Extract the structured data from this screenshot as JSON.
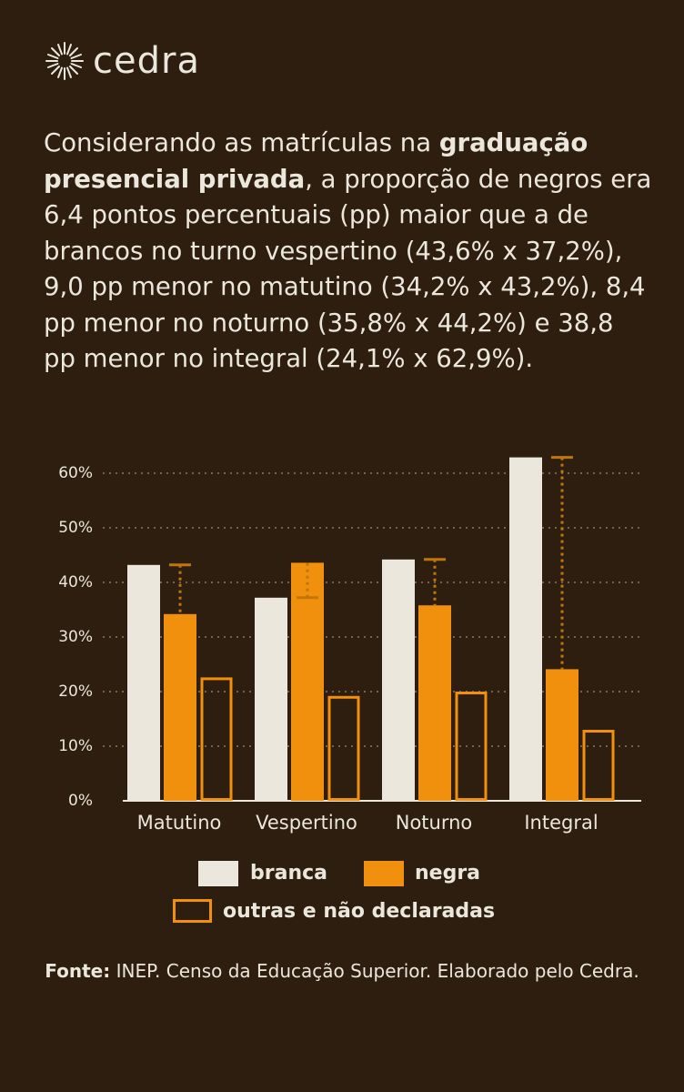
{
  "logo": "cedra",
  "intro": [
    "Considerando as matrículas na ",
    "graduação presencial privada",
    ", a proporção de negros era 6,4 pontos percentuais (pp) maior que a de brancos no turno vespertino (43,6% x 37,2%), 9,0 pp menor no matutino (34,2% x 43,2%), 8,4 pp menor no noturno (35,8% x 44,2%) e 38,8 pp menor no integral (24,1% x 62,9%)."
  ],
  "chart_data": {
    "type": "bar",
    "categories": [
      "Matutino",
      "Vespertino",
      "Noturno",
      "Integral"
    ],
    "series": [
      {
        "name": "branca",
        "color": "#ebe7dc",
        "values": [
          43.2,
          37.2,
          44.2,
          62.9
        ]
      },
      {
        "name": "negra",
        "color": "#f0900c",
        "values": [
          34.2,
          43.6,
          35.8,
          24.1
        ]
      },
      {
        "name": "outras e não declaradas",
        "color": "#f0900c",
        "values": [
          22.6,
          19.2,
          20.0,
          13.0
        ]
      }
    ],
    "ylim": [
      0,
      60
    ],
    "yticks": [
      {
        "value": 0,
        "label": "0%"
      },
      {
        "value": 10,
        "label": "10%"
      },
      {
        "value": 20,
        "label": "20%"
      },
      {
        "value": 30,
        "label": "30%"
      },
      {
        "value": 40,
        "label": "40%"
      },
      {
        "value": 50,
        "label": "50%"
      },
      {
        "value": 60,
        "label": "60%"
      }
    ],
    "grid": true
  },
  "source": [
    "Fonte:",
    " INEP. Censo da Educação Superior. Elaborado pelo Cedra."
  ]
}
